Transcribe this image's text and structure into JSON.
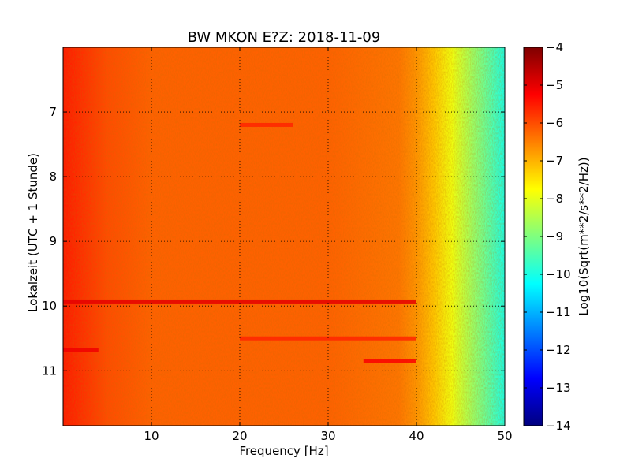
{
  "chart_data": {
    "type": "heatmap",
    "title": "BW MKON E?Z: 2018-11-09",
    "xlabel": "Frequency [Hz]",
    "ylabel": "Lokalzeit (UTC + 1 Stunde)",
    "xlim": [
      0,
      50
    ],
    "ylim": [
      6.0,
      11.85
    ],
    "y_inverted": true,
    "x_ticks": [
      10,
      20,
      30,
      40,
      50
    ],
    "x_tick_labels": [
      "10",
      "20",
      "30",
      "40",
      "50"
    ],
    "y_ticks": [
      7,
      8,
      9,
      10,
      11
    ],
    "y_tick_labels": [
      "7",
      "8",
      "9",
      "10",
      "11"
    ],
    "grid": true,
    "colormap": "jet",
    "colorbar": {
      "label": "Log10(Sqrt(m**2/s**2/Hz))",
      "range": [
        -14,
        -4
      ],
      "ticks": [
        -4,
        -5,
        -6,
        -7,
        -8,
        -9,
        -10,
        -11,
        -12,
        -13,
        -14
      ],
      "tick_labels": [
        "−4",
        "−5",
        "−6",
        "−7",
        "−8",
        "−9",
        "−10",
        "−11",
        "−12",
        "−13",
        "−14"
      ]
    },
    "frequency_profile": {
      "freq_hz": [
        0,
        2,
        5,
        10,
        20,
        30,
        38,
        40,
        42,
        44,
        46,
        48,
        50
      ],
      "log_amplitude": [
        -5.5,
        -5.7,
        -6.0,
        -6.2,
        -6.2,
        -6.2,
        -6.4,
        -6.7,
        -7.2,
        -7.9,
        -8.6,
        -9.3,
        -10.0
      ]
    },
    "bands": [
      {
        "time": 9.93,
        "freq_range": [
          0,
          40
        ],
        "log_amplitude": -5.0
      },
      {
        "time": 10.85,
        "freq_range": [
          34,
          40
        ],
        "log_amplitude": -5.2
      },
      {
        "time": 10.68,
        "freq_range": [
          0,
          4
        ],
        "log_amplitude": -5.1
      },
      {
        "time": 7.2,
        "freq_range": [
          20,
          26
        ],
        "log_amplitude": -5.6
      },
      {
        "time": 10.5,
        "freq_range": [
          20,
          40
        ],
        "log_amplitude": -5.6
      }
    ]
  }
}
